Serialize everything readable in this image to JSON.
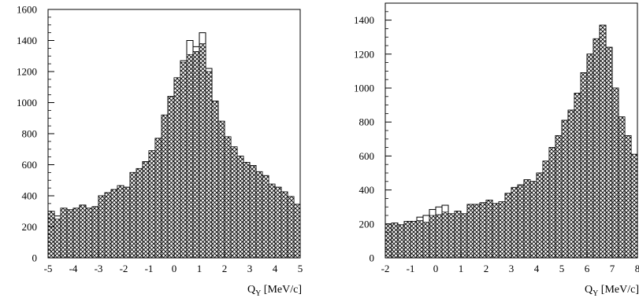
{
  "chart_data": [
    {
      "type": "bar",
      "title": "",
      "xlabel": "Q",
      "xlabel_subscript": "Y",
      "xlabel_unit": "[MeV/c]",
      "ylabel": "",
      "xlim": [
        -5,
        5
      ],
      "ylim": [
        0,
        1600
      ],
      "xticks": [
        "-5",
        "-4",
        "-3",
        "-2",
        "-1",
        "0",
        "1",
        "2",
        "3",
        "4",
        "5"
      ],
      "yticks": [
        "0",
        "200",
        "400",
        "600",
        "800",
        "1000",
        "1200",
        "1400",
        "1600"
      ],
      "bin_width": 0.25,
      "x_start": -5,
      "series": [
        {
          "style": "outline",
          "values": [
            300,
            270,
            320,
            310,
            320,
            340,
            320,
            330,
            400,
            420,
            440,
            465,
            455,
            550,
            575,
            620,
            690,
            770,
            920,
            1040,
            1160,
            1270,
            1400,
            1360,
            1450,
            1220,
            1010,
            880,
            780,
            715,
            655,
            615,
            595,
            555,
            530,
            475,
            455,
            425,
            395,
            345,
            350,
            345,
            330,
            335,
            365,
            310,
            295,
            270,
            280,
            260
          ]
        },
        {
          "style": "hatched",
          "values": [
            300,
            250,
            320,
            310,
            320,
            340,
            320,
            330,
            400,
            420,
            440,
            465,
            455,
            550,
            575,
            620,
            690,
            770,
            920,
            1040,
            1160,
            1260,
            1310,
            1330,
            1380,
            1200,
            1010,
            880,
            780,
            715,
            655,
            615,
            595,
            555,
            530,
            475,
            455,
            425,
            395,
            345,
            350,
            345,
            330,
            335,
            365,
            310,
            295,
            270,
            280,
            260
          ]
        }
      ]
    },
    {
      "type": "bar",
      "title": "",
      "xlabel": "Q",
      "xlabel_subscript": "Y",
      "xlabel_unit": "[MeV/c]",
      "ylabel": "",
      "xlim": [
        -2,
        8
      ],
      "ylim": [
        0,
        1500
      ],
      "xticks": [
        "-2",
        "-1",
        "0",
        "1",
        "2",
        "3",
        "4",
        "5",
        "6",
        "7",
        "8"
      ],
      "yticks": [
        "0",
        "200",
        "400",
        "600",
        "800",
        "1000",
        "1200",
        "1400"
      ],
      "bin_width": 0.25,
      "x_start": -2,
      "series": [
        {
          "style": "outline",
          "values": [
            200,
            205,
            195,
            215,
            215,
            240,
            250,
            285,
            300,
            310,
            260,
            275,
            260,
            315,
            315,
            325,
            340,
            320,
            330,
            380,
            415,
            430,
            460,
            450,
            500,
            570,
            650,
            720,
            810,
            870,
            970,
            1090,
            1200,
            1290,
            1370,
            1240,
            1000,
            830,
            720,
            610,
            590,
            550,
            505
          ]
        },
        {
          "style": "hatched",
          "values": [
            200,
            205,
            195,
            215,
            215,
            220,
            210,
            250,
            255,
            270,
            260,
            275,
            260,
            315,
            315,
            325,
            340,
            320,
            330,
            380,
            415,
            430,
            460,
            450,
            500,
            570,
            650,
            720,
            810,
            870,
            970,
            1090,
            1200,
            1290,
            1370,
            1240,
            1000,
            830,
            720,
            610,
            590,
            550,
            505
          ]
        }
      ]
    }
  ]
}
